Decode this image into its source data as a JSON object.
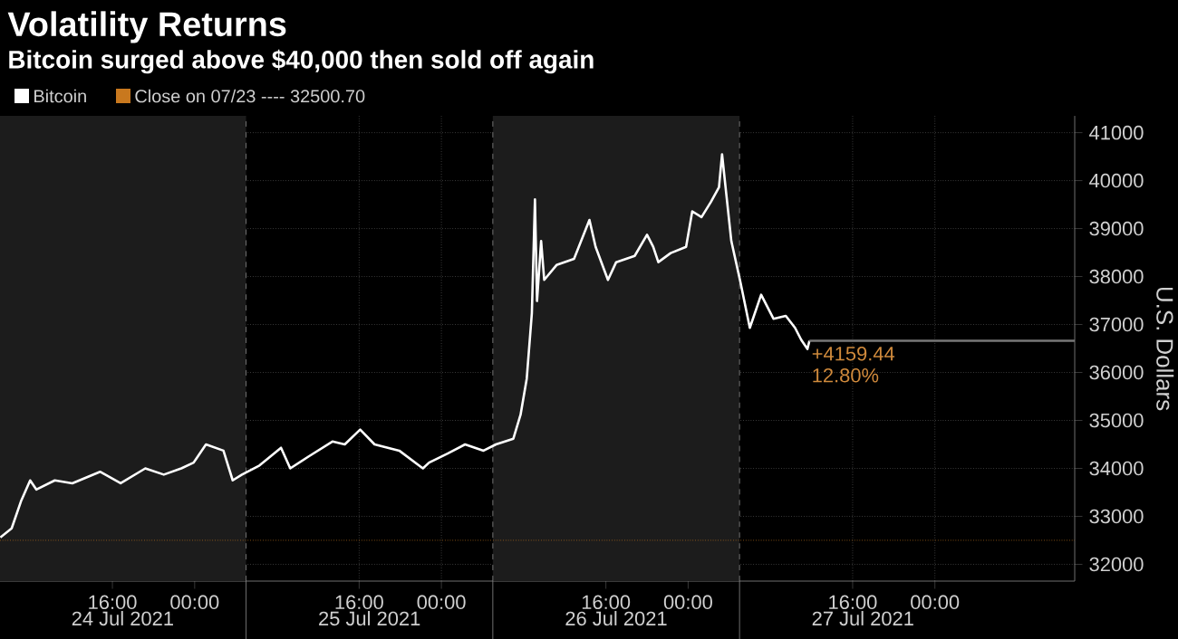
{
  "chart_data": {
    "type": "line",
    "title": "Volatility Returns",
    "subtitle": "Bitcoin surged above $40,000 then sold off again",
    "ylabel": "U.S. Dollars",
    "xlim": [
      "2021-07-24T05:04",
      "2021-07-28T13:36"
    ],
    "ylim": [
      31650,
      41350
    ],
    "yticks": [
      32000,
      33000,
      34000,
      35000,
      36000,
      37000,
      38000,
      39000,
      40000,
      41000
    ],
    "xticks": [
      {
        "value": "2021-07-24T16:00",
        "label": "16:00"
      },
      {
        "value": "2021-07-25T00:00",
        "label": "00:00"
      },
      {
        "value": "2021-07-25T16:00",
        "label": "16:00"
      },
      {
        "value": "2021-07-26T00:00",
        "label": "00:00"
      },
      {
        "value": "2021-07-26T16:00",
        "label": "16:00"
      },
      {
        "value": "2021-07-27T00:00",
        "label": "00:00"
      },
      {
        "value": "2021-07-27T16:00",
        "label": "16:00"
      },
      {
        "value": "2021-07-28T00:00",
        "label": "00:00"
      }
    ],
    "x2lim": [
      "2021-07-24T05:04",
      "2021-07-28T13:36"
    ],
    "x2ticks": [
      {
        "value": "2021-07-24T17:00",
        "label": "24 Jul 2021"
      },
      {
        "value": "2021-07-25T17:00",
        "label": "25 Jul 2021"
      },
      {
        "value": "2021-07-26T17:00",
        "label": "26 Jul 2021"
      },
      {
        "value": "2021-07-27T17:00",
        "label": "27 Jul 2021"
      }
    ],
    "grid": true,
    "legend": "top left",
    "series": [
      {
        "name": "Bitcoin",
        "color": "#ffffff",
        "x": [
          "2021-07-24T05:06",
          "2021-07-24T06:12",
          "2021-07-24T07:06",
          "2021-07-24T08:00",
          "2021-07-24T08:36",
          "2021-07-24T10:24",
          "2021-07-24T12:06",
          "2021-07-24T14:48",
          "2021-07-24T16:48",
          "2021-07-24T19:12",
          "2021-07-24T21:00",
          "2021-07-24T22:42",
          "2021-07-24T23:54",
          "2021-07-25T01:06",
          "2021-07-25T02:48",
          "2021-07-25T03:42",
          "2021-07-25T04:36",
          "2021-07-25T06:18",
          "2021-07-25T08:24",
          "2021-07-25T09:18",
          "2021-07-25T11:06",
          "2021-07-25T13:24",
          "2021-07-25T14:36",
          "2021-07-25T16:06",
          "2021-07-25T17:30",
          "2021-07-25T19:54",
          "2021-07-25T22:12",
          "2021-07-25T22:48",
          "2021-07-26T00:36",
          "2021-07-26T02:18",
          "2021-07-26T04:06",
          "2021-07-26T05:18",
          "2021-07-26T07:00",
          "2021-07-26T07:42",
          "2021-07-26T08:18",
          "2021-07-26T08:48",
          "2021-07-26T09:06",
          "2021-07-26T09:18",
          "2021-07-26T09:42",
          "2021-07-26T10:00",
          "2021-07-26T11:12",
          "2021-07-26T12:54",
          "2021-07-26T14:24",
          "2021-07-26T15:00",
          "2021-07-26T16:12",
          "2021-07-26T17:00",
          "2021-07-26T18:48",
          "2021-07-26T20:00",
          "2021-07-26T20:36",
          "2021-07-26T21:06",
          "2021-07-26T22:18",
          "2021-07-26T23:48",
          "2021-07-27T00:24",
          "2021-07-27T01:18",
          "2021-07-27T02:12",
          "2021-07-27T03:00",
          "2021-07-27T03:18",
          "2021-07-27T03:42",
          "2021-07-27T04:12",
          "2021-07-27T05:06",
          "2021-07-27T06:00",
          "2021-07-27T07:06",
          "2021-07-27T08:18",
          "2021-07-27T09:30",
          "2021-07-27T10:24",
          "2021-07-27T11:00",
          "2021-07-27T11:36",
          "2021-07-27T11:48"
        ],
        "values": [
          32560,
          32750,
          33310,
          33750,
          33560,
          33750,
          33690,
          33930,
          33690,
          34000,
          33870,
          34000,
          34120,
          34500,
          34370,
          33750,
          33870,
          34060,
          34430,
          34000,
          34250,
          34560,
          34500,
          34810,
          34500,
          34370,
          34000,
          34120,
          34310,
          34500,
          34370,
          34500,
          34620,
          35120,
          35870,
          37240,
          39610,
          37490,
          38740,
          37930,
          38240,
          38370,
          39180,
          38620,
          37930,
          38300,
          38430,
          38870,
          38620,
          38300,
          38490,
          38620,
          39360,
          39240,
          39550,
          39860,
          40550,
          39740,
          38740,
          37870,
          36930,
          37620,
          37120,
          37180,
          36930,
          36680,
          36490,
          36660
        ]
      },
      {
        "color": "#777777",
        "x": [
          "2021-07-27T11:48",
          "2021-07-28T13:36"
        ],
        "values": [
          36660,
          36660
        ]
      }
    ],
    "ref_lines": [
      {
        "axis": "y",
        "value": 32500.7,
        "label": "Close on 07/23 ---- 32500.70",
        "color": "#c8781e",
        "line_style": "dotted"
      },
      {
        "axis": "x",
        "value": "2021-07-25T05:00",
        "color": "#8a8a8a",
        "line_style": "dashed"
      },
      {
        "axis": "x",
        "value": "2021-07-26T05:00",
        "color": "#8a8a8a",
        "line_style": "dashed"
      },
      {
        "axis": "x",
        "value": "2021-07-27T05:00",
        "color": "#8a8a8a",
        "line_style": "dashed"
      }
    ],
    "bands": [
      {
        "axis": "x",
        "from": "2021-07-24T05:04",
        "to": "2021-07-25T05:00",
        "color": "#1c1c1c"
      },
      {
        "axis": "x",
        "from": "2021-07-26T05:00",
        "to": "2021-07-27T05:00",
        "color": "#1c1c1c"
      }
    ],
    "annotations": [
      {
        "text": "+4159.44",
        "x": "2021-07-27T11:48",
        "y": 36660
      },
      {
        "text": "12.80%",
        "x": "2021-07-27T11:48",
        "y": 36660
      }
    ]
  }
}
